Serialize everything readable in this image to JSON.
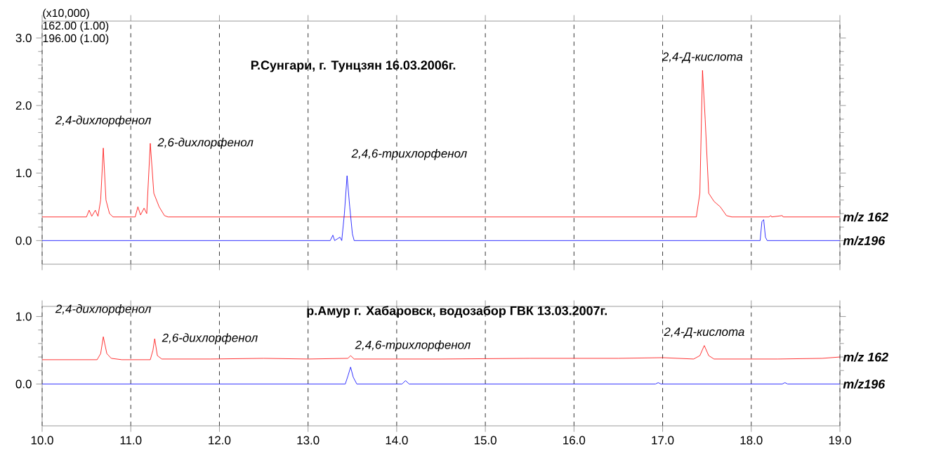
{
  "chart_data": [
    {
      "type": "line",
      "title": "Р.Сунгари, г. Тунцзян 16.03.2006г.",
      "xlim": [
        10,
        19
      ],
      "ylim": [
        -0.35,
        3.25
      ],
      "xticks": [
        {
          "value": 10,
          "label": null
        },
        {
          "value": 11,
          "label": null
        },
        {
          "value": 12,
          "label": null
        },
        {
          "value": 13,
          "label": null
        },
        {
          "value": 14,
          "label": null
        },
        {
          "value": 15,
          "label": null
        },
        {
          "value": 16,
          "label": null
        },
        {
          "value": 17,
          "label": null
        },
        {
          "value": 18,
          "label": null
        },
        {
          "value": 19,
          "label": null
        }
      ],
      "yticks": [
        {
          "value": 0,
          "label": "0.0"
        },
        {
          "value": 1,
          "label": "1.0"
        },
        {
          "value": 2,
          "label": "2.0"
        },
        {
          "value": 3,
          "label": "3.0"
        }
      ],
      "tick_labels": "y",
      "grid": "x",
      "series": [
        {
          "name": "m/z 162",
          "color": "#ff0000",
          "x": [
            10.0,
            10.5,
            10.53,
            10.56,
            10.6,
            10.63,
            10.66,
            10.69,
            10.72,
            10.76,
            10.8,
            11.05,
            11.08,
            11.11,
            11.15,
            11.18,
            11.22,
            11.26,
            11.32,
            11.38,
            11.42,
            17.38,
            17.42,
            17.45,
            17.48,
            17.52,
            17.58,
            17.65,
            17.72,
            17.78,
            18.2,
            18.22,
            18.23,
            18.35,
            18.36,
            19.0
          ],
          "values": [
            0.35,
            0.35,
            0.45,
            0.36,
            0.45,
            0.36,
            0.6,
            1.37,
            0.6,
            0.4,
            0.35,
            0.35,
            0.5,
            0.38,
            0.48,
            0.4,
            1.44,
            0.7,
            0.5,
            0.37,
            0.35,
            0.35,
            0.7,
            2.52,
            1.8,
            0.7,
            0.58,
            0.5,
            0.37,
            0.35,
            0.35,
            0.37,
            0.35,
            0.37,
            0.35,
            0.35
          ]
        },
        {
          "name": "m/z196",
          "color": "#0000ff",
          "x": [
            10.0,
            13.25,
            13.28,
            13.3,
            13.36,
            13.38,
            13.41,
            13.44,
            13.47,
            13.5,
            13.52,
            18.1,
            18.12,
            18.14,
            18.16,
            18.18,
            19.0
          ],
          "values": [
            0,
            0,
            0.08,
            0,
            0.05,
            0,
            0.4,
            0.96,
            0.5,
            0.1,
            0,
            0,
            0.28,
            0.31,
            0.05,
            0,
            0
          ]
        }
      ],
      "annotations": [
        "(x10,000)",
        "162.00 (1.00)",
        "196.00 (1.00)",
        {
          "text": "2,4-дихлорфенол",
          "x": 10.69,
          "y": 1.37
        },
        {
          "text": "2,6-дихлорфенол",
          "x": 11.22,
          "y": 1.44
        },
        {
          "text": "2,4,6-трихлорфенол",
          "x": 13.44,
          "y": 0.96
        },
        {
          "text": "2,4-Д-кислота",
          "x": 17.45,
          "y": 2.52
        }
      ]
    },
    {
      "type": "line",
      "title": "р.Амур г. Хабаровск, водозабор ГВК 13.03.2007г.",
      "xlim": [
        10,
        19
      ],
      "ylim": [
        -0.62,
        1.15
      ],
      "xticks": [
        {
          "value": 10,
          "label": "10.0"
        },
        {
          "value": 11,
          "label": "11.0"
        },
        {
          "value": 12,
          "label": "12.0"
        },
        {
          "value": 13,
          "label": "13.0"
        },
        {
          "value": 14,
          "label": "14.0"
        },
        {
          "value": 15,
          "label": "15.0"
        },
        {
          "value": 16,
          "label": "16.0"
        },
        {
          "value": 17,
          "label": "17.0"
        },
        {
          "value": 18,
          "label": "18.0"
        },
        {
          "value": 19,
          "label": "19.0"
        }
      ],
      "yticks": [
        {
          "value": 0,
          "label": "0.0"
        },
        {
          "value": 1,
          "label": "1.0"
        }
      ],
      "grid": "x",
      "series": [
        {
          "name": "m/z 162",
          "color": "#ff0000",
          "x": [
            10.0,
            10.62,
            10.66,
            10.69,
            10.73,
            10.78,
            10.9,
            11.22,
            11.25,
            11.27,
            11.3,
            11.35,
            11.9,
            12.5,
            13.0,
            13.45,
            13.48,
            13.52,
            14.5,
            15.5,
            16.5,
            17.0,
            17.35,
            17.42,
            17.47,
            17.52,
            17.58,
            18.3,
            18.8,
            19.0
          ],
          "values": [
            0.36,
            0.36,
            0.45,
            0.7,
            0.45,
            0.38,
            0.36,
            0.36,
            0.5,
            0.67,
            0.42,
            0.37,
            0.37,
            0.38,
            0.37,
            0.38,
            0.42,
            0.37,
            0.37,
            0.38,
            0.38,
            0.39,
            0.37,
            0.42,
            0.57,
            0.42,
            0.37,
            0.37,
            0.38,
            0.4
          ]
        },
        {
          "name": "m/z196",
          "color": "#0000ff",
          "x": [
            10.0,
            13.42,
            13.45,
            13.48,
            13.51,
            13.55,
            14.06,
            14.1,
            14.14,
            16.92,
            16.95,
            16.98,
            18.35,
            18.38,
            18.41,
            19.0
          ],
          "values": [
            0,
            0,
            0.12,
            0.25,
            0.1,
            0,
            0,
            0.05,
            0,
            0,
            0.02,
            0,
            0,
            0.02,
            0,
            0
          ]
        }
      ],
      "annotations": [
        {
          "text": "2,4-дихлорфенол",
          "x": 10.69,
          "y": 0.7
        },
        {
          "text": "2,6-дихлорфенол",
          "x": 11.27,
          "y": 0.67
        },
        {
          "text": "2,4,6-трихлорфенол",
          "x": 13.48,
          "y": 0.25
        },
        {
          "text": "2,4-Д-кислота",
          "x": 17.47,
          "y": 0.57
        }
      ]
    }
  ]
}
